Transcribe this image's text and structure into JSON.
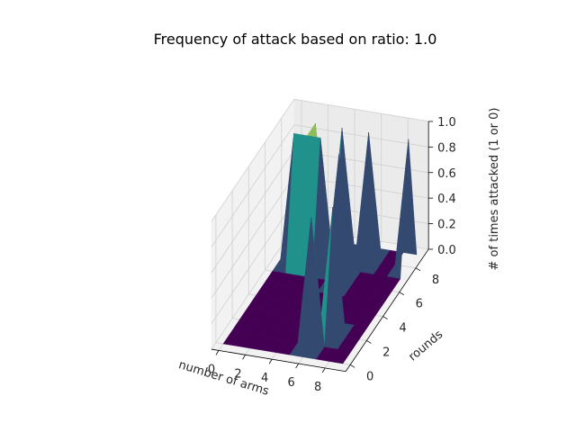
{
  "chart_data": {
    "type": "surface3d",
    "title": "Frequency of attack based on ratio: 1.0",
    "xlabel": "number of arms",
    "ylabel": "rounds",
    "zlabel": "# of times attacked (1 or 0)",
    "x_ticks": [
      "0",
      "2",
      "4",
      "6",
      "8"
    ],
    "y_ticks": [
      "0",
      "2",
      "4",
      "6",
      "8"
    ],
    "z_ticks": [
      "0.0",
      "0.2",
      "0.4",
      "0.6",
      "0.8",
      "1.0"
    ],
    "xlim": [
      0,
      9
    ],
    "ylim": [
      0,
      9
    ],
    "zlim": [
      0,
      1
    ],
    "colormap": "viridis",
    "colors": {
      "low": "#440154",
      "mid": "#21918c",
      "high": "#fde725",
      "edge": "#3b0a4f"
    },
    "grid": true,
    "surface": {
      "description_of_axes": "z[y][x], x = number of arms 0..9, y = rounds 0..9",
      "z": [
        [
          0,
          0,
          0,
          0,
          0,
          0,
          0,
          0,
          0,
          0
        ],
        [
          0,
          0,
          0,
          0,
          0,
          0,
          1,
          0,
          0,
          0
        ],
        [
          0,
          0,
          0,
          0,
          0,
          0,
          0,
          1,
          0,
          0
        ],
        [
          0,
          0,
          0,
          0,
          0,
          0,
          0,
          0,
          0,
          0
        ],
        [
          0,
          0,
          0,
          0,
          0,
          0,
          0,
          0,
          0,
          0
        ],
        [
          0,
          0,
          0,
          0,
          0,
          0,
          0,
          0,
          0,
          0
        ],
        [
          0,
          0,
          0,
          0,
          0,
          1,
          0,
          0,
          0,
          0
        ],
        [
          0,
          1,
          1,
          1,
          0,
          0,
          0,
          0,
          0,
          0
        ],
        [
          0,
          0,
          1,
          0,
          1,
          0,
          1,
          0,
          0,
          1
        ],
        [
          0,
          0,
          0,
          0,
          0,
          0,
          0,
          0,
          0,
          0
        ]
      ]
    }
  }
}
